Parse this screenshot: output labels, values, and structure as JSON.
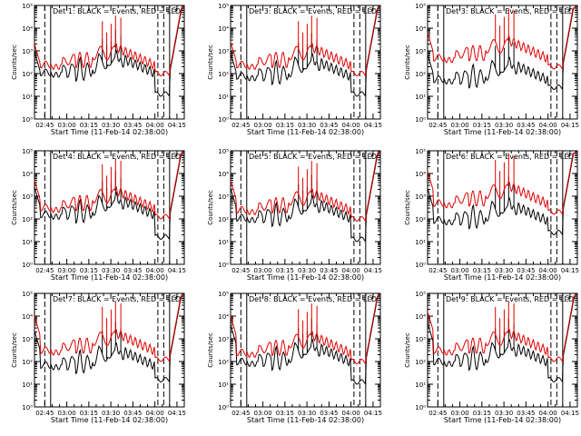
{
  "figure": {
    "title_template": "BLACK = Events, RED = LLD",
    "ylabel": "Counts/sec",
    "xlabel": "Start Time (11-Feb-14 02:38:00)",
    "xticks": [
      "02:45",
      "03:00",
      "03:15",
      "03:30",
      "03:45",
      "04:00",
      "04:15"
    ],
    "yticks": [
      "10⁰",
      "10¹",
      "10²",
      "10³",
      "10⁴",
      "10⁵"
    ]
  },
  "chart_data": [
    {
      "type": "line",
      "title": "Det 1: BLACK = Events, RED = LLD",
      "ylabel": "Counts/sec",
      "xlabel": "Start Time (11-Feb-14 02:38:00)",
      "ylim": [
        1,
        100000
      ],
      "x_range_minutes": [
        38,
        140
      ],
      "series": [
        {
          "name": "Events",
          "color": "#000000"
        },
        {
          "name": "LLD",
          "color": "#e00000"
        }
      ]
    },
    {
      "type": "line",
      "title": "Det 3: BLACK = Events, RED = LLD",
      "ylabel": "Counts/sec",
      "xlabel": "Start Time (11-Feb-14 02:38:00)",
      "ylim": [
        1,
        100000
      ],
      "x_range_minutes": [
        38,
        140
      ],
      "series": [
        {
          "name": "Events",
          "color": "#000000"
        },
        {
          "name": "LLD",
          "color": "#e00000"
        }
      ]
    },
    {
      "type": "line",
      "title": "Det 3: BLACK = Events, RED = LLD",
      "ylabel": "Counts/sec",
      "xlabel": "Start Time (11-Feb-14 02:38:00)",
      "ylim": [
        1,
        100000
      ],
      "x_range_minutes": [
        38,
        140
      ],
      "series": [
        {
          "name": "Events",
          "color": "#000000"
        },
        {
          "name": "LLD",
          "color": "#e00000"
        }
      ]
    },
    {
      "type": "line",
      "title": "Det 4: BLACK = Events, RED = LLD",
      "ylabel": "Counts/sec",
      "xlabel": "Start Time (11-Feb-14 02:38:00)",
      "ylim": [
        1,
        100000
      ],
      "x_range_minutes": [
        38,
        140
      ],
      "series": [
        {
          "name": "Events",
          "color": "#000000"
        },
        {
          "name": "LLD",
          "color": "#e00000"
        }
      ]
    },
    {
      "type": "line",
      "title": "Det 5: BLACK = Events, RED = LLD",
      "ylabel": "Counts/sec",
      "xlabel": "Start Time (11-Feb-14 02:38:00)",
      "ylim": [
        1,
        100000
      ],
      "x_range_minutes": [
        38,
        140
      ],
      "series": [
        {
          "name": "Events",
          "color": "#000000"
        },
        {
          "name": "LLD",
          "color": "#e00000"
        }
      ]
    },
    {
      "type": "line",
      "title": "Det 6: BLACK = Events, RED = LLD",
      "ylabel": "Counts/sec",
      "xlabel": "Start Time (11-Feb-14 02:38:00)",
      "ylim": [
        1,
        100000
      ],
      "x_range_minutes": [
        38,
        140
      ],
      "series": [
        {
          "name": "Events",
          "color": "#000000"
        },
        {
          "name": "LLD",
          "color": "#e00000"
        }
      ]
    },
    {
      "type": "line",
      "title": "Det 7: BLACK = Events, RED = LLD",
      "ylabel": "Counts/sec",
      "xlabel": "Start Time (11-Feb-14 02:38:00)",
      "ylim": [
        1,
        100000
      ],
      "x_range_minutes": [
        38,
        140
      ],
      "series": [
        {
          "name": "Events",
          "color": "#000000"
        },
        {
          "name": "LLD",
          "color": "#e00000"
        }
      ]
    },
    {
      "type": "line",
      "title": "Det 8: BLACK = Events, RED = LLD",
      "ylabel": "Counts/sec",
      "xlabel": "Start Time (11-Feb-14 02:38:00)",
      "ylim": [
        1,
        100000
      ],
      "x_range_minutes": [
        38,
        140
      ],
      "series": [
        {
          "name": "Events",
          "color": "#000000"
        },
        {
          "name": "LLD",
          "color": "#e00000"
        }
      ]
    },
    {
      "type": "line",
      "title": "Det 9: BLACK = Events, RED = LLD",
      "ylabel": "Counts/sec",
      "xlabel": "Start Time (11-Feb-14 02:38:00)",
      "ylim": [
        1,
        100000
      ],
      "x_range_minutes": [
        38,
        140
      ],
      "series": [
        {
          "name": "Events",
          "color": "#000000"
        },
        {
          "name": "LLD",
          "color": "#e00000"
        }
      ]
    }
  ],
  "markers": {
    "vertical_lines_minutes": [
      45,
      49,
      122,
      126,
      130
    ],
    "marker_labels": [
      "E",
      "S"
    ]
  }
}
